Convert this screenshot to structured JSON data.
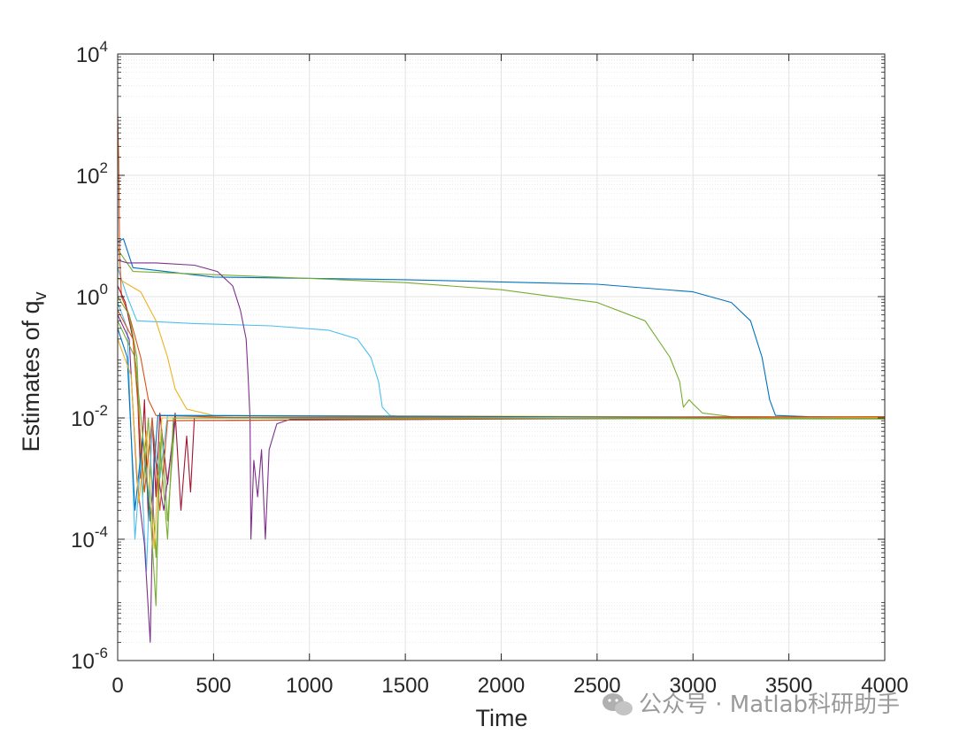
{
  "chart_data": {
    "type": "line",
    "xlabel": "Time",
    "ylabel_main": "Estimates of q",
    "ylabel_sub": "v",
    "xlim": [
      0,
      4000
    ],
    "ylim": [
      1e-06,
      10000
    ],
    "yscale": "log",
    "grid": true,
    "minor_grid": true,
    "xticks": [
      0,
      500,
      1000,
      1500,
      2000,
      2500,
      3000,
      3500,
      4000
    ],
    "xtick_labels": [
      "0",
      "500",
      "1000",
      "1500",
      "2000",
      "2500",
      "3000",
      "3500",
      "4000"
    ],
    "yticks": [
      {
        "value": 1e-06,
        "base": "10",
        "exp": "-6"
      },
      {
        "value": 0.0001,
        "base": "10",
        "exp": "-4"
      },
      {
        "value": 0.01,
        "base": "10",
        "exp": "-2"
      },
      {
        "value": 1,
        "base": "10",
        "exp": "0"
      },
      {
        "value": 100,
        "base": "10",
        "exp": "2"
      },
      {
        "value": 10000,
        "base": "10",
        "exp": "4"
      }
    ],
    "converged_value": 0.01,
    "series": [
      {
        "color": "#0072BD",
        "points": [
          [
            0,
            8
          ],
          [
            30,
            9
          ],
          [
            80,
            3
          ],
          [
            500,
            2.1
          ],
          [
            1500,
            1.9
          ],
          [
            2500,
            1.6
          ],
          [
            3000,
            1.2
          ],
          [
            3200,
            0.8
          ],
          [
            3300,
            0.4
          ],
          [
            3360,
            0.1
          ],
          [
            3400,
            0.02
          ],
          [
            3430,
            0.011
          ],
          [
            3600,
            0.0105
          ],
          [
            4000,
            0.0102
          ]
        ]
      },
      {
        "color": "#77AC30",
        "points": [
          [
            0,
            6
          ],
          [
            80,
            2.6
          ],
          [
            500,
            2.3
          ],
          [
            1000,
            2.0
          ],
          [
            1500,
            1.7
          ],
          [
            2000,
            1.3
          ],
          [
            2500,
            0.8
          ],
          [
            2750,
            0.4
          ],
          [
            2880,
            0.1
          ],
          [
            2930,
            0.04
          ],
          [
            2950,
            0.015
          ],
          [
            2980,
            0.02
          ],
          [
            3000,
            0.017
          ],
          [
            3050,
            0.012
          ],
          [
            3200,
            0.0105
          ],
          [
            4000,
            0.0101
          ]
        ]
      },
      {
        "color": "#4DBEEE",
        "points": [
          [
            0,
            3
          ],
          [
            50,
            1
          ],
          [
            100,
            0.4
          ],
          [
            400,
            0.36
          ],
          [
            800,
            0.33
          ],
          [
            1100,
            0.28
          ],
          [
            1250,
            0.2
          ],
          [
            1320,
            0.1
          ],
          [
            1360,
            0.04
          ],
          [
            1380,
            0.015
          ],
          [
            1420,
            0.011
          ],
          [
            1600,
            0.0095
          ],
          [
            2000,
            0.0102
          ],
          [
            4000,
            0.01
          ]
        ]
      },
      {
        "color": "#7E2F8E",
        "points": [
          [
            0,
            4
          ],
          [
            50,
            3.6
          ],
          [
            200,
            3.6
          ],
          [
            400,
            3.3
          ],
          [
            520,
            2.6
          ],
          [
            600,
            1.5
          ],
          [
            640,
            0.6
          ],
          [
            670,
            0.2
          ],
          [
            680,
            0.05
          ],
          [
            690,
            0.01
          ],
          [
            695,
            0.0001
          ],
          [
            710,
            0.002
          ],
          [
            730,
            0.0005
          ],
          [
            750,
            0.003
          ],
          [
            770,
            0.0001
          ],
          [
            790,
            0.003
          ],
          [
            830,
            0.008
          ],
          [
            900,
            0.0095
          ],
          [
            4000,
            0.0101
          ]
        ]
      },
      {
        "color": "#EDB120",
        "points": [
          [
            0,
            2
          ],
          [
            120,
            1.2
          ],
          [
            200,
            0.4
          ],
          [
            260,
            0.1
          ],
          [
            300,
            0.03
          ],
          [
            360,
            0.014
          ],
          [
            500,
            0.011
          ],
          [
            4000,
            0.0102
          ]
        ]
      },
      {
        "color": "#D95319",
        "points": [
          [
            0,
            1000
          ],
          [
            5,
            200
          ],
          [
            10,
            5
          ],
          [
            20,
            1
          ],
          [
            60,
            0.5
          ],
          [
            120,
            0.1
          ],
          [
            160,
            0.02
          ],
          [
            200,
            0.011
          ],
          [
            600,
            0.0102
          ],
          [
            4000,
            0.0098
          ]
        ]
      },
      {
        "color": "#A2142F",
        "points": [
          [
            0,
            1.5
          ],
          [
            40,
            0.8
          ],
          [
            80,
            0.2
          ],
          [
            100,
            0.05
          ],
          [
            120,
            0.001
          ],
          [
            140,
            0.02
          ],
          [
            160,
            0.0002
          ],
          [
            180,
            0.01
          ],
          [
            200,
            0.0005
          ],
          [
            220,
            0.012
          ],
          [
            260,
            0.0008
          ],
          [
            300,
            0.012
          ],
          [
            330,
            0.0003
          ],
          [
            360,
            0.005
          ],
          [
            380,
            0.0006
          ],
          [
            400,
            0.01
          ],
          [
            600,
            0.0102
          ],
          [
            4000,
            0.0104
          ]
        ]
      },
      {
        "color": "#77AC30",
        "points": [
          [
            0,
            1
          ],
          [
            60,
            0.5
          ],
          [
            100,
            0.1
          ],
          [
            130,
            0.0005
          ],
          [
            160,
            0.01
          ],
          [
            200,
            5e-05
          ],
          [
            230,
            0.006
          ],
          [
            260,
            0.0002
          ],
          [
            300,
            0.01
          ],
          [
            4000,
            0.0096
          ]
        ]
      },
      {
        "color": "#4DBEEE",
        "points": [
          [
            0,
            0.8
          ],
          [
            50,
            0.3
          ],
          [
            90,
            0.0001
          ],
          [
            120,
            0.002
          ],
          [
            150,
            3e-05
          ],
          [
            180,
            0.008
          ],
          [
            220,
            0.001
          ],
          [
            260,
            0.011
          ],
          [
            4000,
            0.0099
          ]
        ]
      },
      {
        "color": "#7E2F8E",
        "points": [
          [
            0,
            0.5
          ],
          [
            60,
            0.2
          ],
          [
            100,
            0.001
          ],
          [
            140,
            8e-05
          ],
          [
            170,
            2e-06
          ],
          [
            190,
            0.003
          ],
          [
            240,
            0.0003
          ],
          [
            300,
            0.009
          ],
          [
            4000,
            0.0103
          ]
        ]
      },
      {
        "color": "#0072BD",
        "points": [
          [
            0,
            0.3
          ],
          [
            50,
            0.1
          ],
          [
            90,
            0.0003
          ],
          [
            130,
            0.005
          ],
          [
            170,
            0.0002
          ],
          [
            210,
            0.011
          ],
          [
            4000,
            0.01
          ]
        ]
      },
      {
        "color": "#EDB120",
        "points": [
          [
            0,
            0.2
          ],
          [
            70,
            0.05
          ],
          [
            110,
            0.0004
          ],
          [
            150,
            0.006
          ],
          [
            190,
            7e-05
          ],
          [
            230,
            0.01
          ],
          [
            4000,
            0.0101
          ]
        ]
      },
      {
        "color": "#D95319",
        "points": [
          [
            0,
            0.6
          ],
          [
            80,
            0.2
          ],
          [
            140,
            0.0006
          ],
          [
            180,
            0.01
          ],
          [
            220,
            0.0003
          ],
          [
            260,
            0.009
          ],
          [
            4000,
            0.0105
          ]
        ]
      },
      {
        "color": "#77AC30",
        "points": [
          [
            0,
            0.4
          ],
          [
            90,
            0.1
          ],
          [
            170,
            0.0003
          ],
          [
            200,
            8e-06
          ],
          [
            220,
            0.004
          ],
          [
            260,
            0.0001
          ],
          [
            290,
            0.01
          ],
          [
            4000,
            0.0097
          ]
        ]
      }
    ]
  },
  "watermark": {
    "icon": "wechat-icon",
    "text": "公众号 · Matlab科研助手"
  }
}
